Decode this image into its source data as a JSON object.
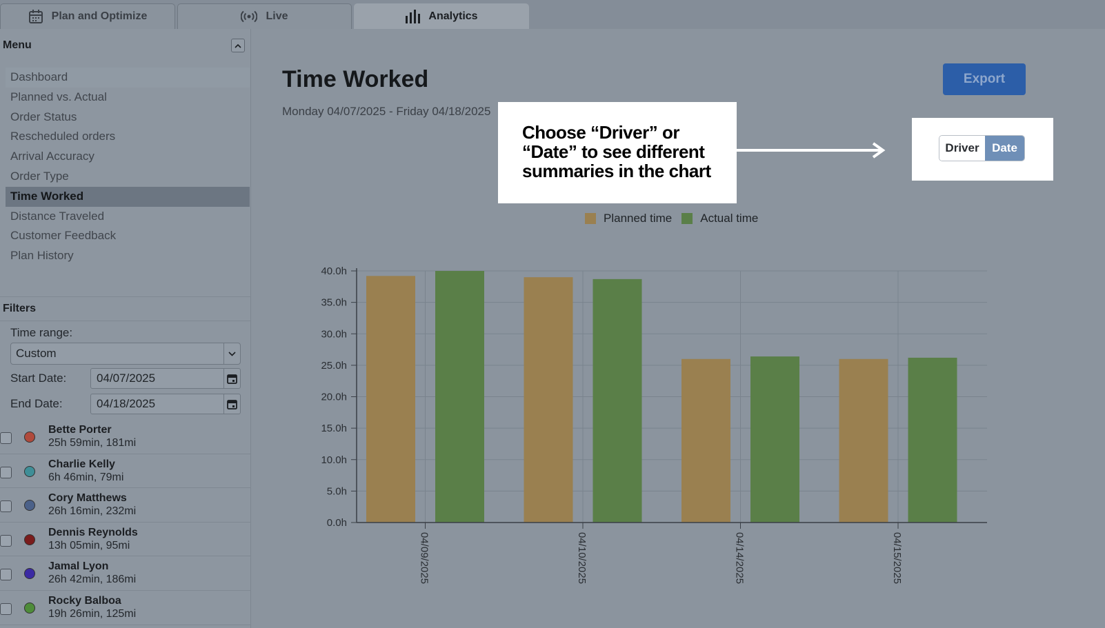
{
  "tabs": [
    {
      "label": "Plan and Optimize",
      "icon": "calendar-icon"
    },
    {
      "label": "Live",
      "icon": "broadcast-icon"
    },
    {
      "label": "Analytics",
      "icon": "bar-chart-icon",
      "active": true
    }
  ],
  "sidebar": {
    "menu_title": "Menu",
    "items": [
      {
        "label": "Dashboard"
      },
      {
        "label": "Planned vs. Actual"
      },
      {
        "label": "Order Status"
      },
      {
        "label": "Rescheduled orders"
      },
      {
        "label": "Arrival Accuracy"
      },
      {
        "label": "Order Type"
      },
      {
        "label": "Time Worked",
        "active": true
      },
      {
        "label": "Distance Traveled"
      },
      {
        "label": "Customer Feedback"
      },
      {
        "label": "Plan History"
      }
    ],
    "filters_title": "Filters",
    "time_range_label": "Time range:",
    "time_range_value": "Custom",
    "start_date_label": "Start Date:",
    "start_date_value": "04/07/2025",
    "end_date_label": "End Date:",
    "end_date_value": "04/18/2025",
    "drivers": [
      {
        "name": "Bette Porter",
        "stats": "25h 59min, 181mi",
        "color": "#b04a3c"
      },
      {
        "name": "Charlie Kelly",
        "stats": "6h 46min, 79mi",
        "color": "#3f8e97"
      },
      {
        "name": "Cory Matthews",
        "stats": "26h 16min, 232mi",
        "color": "#4b6189"
      },
      {
        "name": "Dennis Reynolds",
        "stats": "13h 05min, 95mi",
        "color": "#7a1c1c"
      },
      {
        "name": "Jamal Lyon",
        "stats": "26h 42min, 186mi",
        "color": "#3b2aa3"
      },
      {
        "name": "Rocky Balboa",
        "stats": "19h 26min, 125mi",
        "color": "#4e8c3a"
      }
    ]
  },
  "main": {
    "title": "Time Worked",
    "date_range": "Monday 04/07/2025 - Friday 04/18/2025",
    "export_label": "Export"
  },
  "callout": {
    "text": "Choose “Driver” or “Date” to see different summaries in the chart"
  },
  "toggle": {
    "driver_label": "Driver",
    "date_label": "Date",
    "selected": "Date"
  },
  "colors": {
    "planned": "#9a8050",
    "actual": "#5a7f48",
    "accent": "#2c5ea8"
  },
  "chart_data": {
    "type": "bar",
    "categories": [
      "04/09/2025",
      "04/10/2025",
      "04/14/2025",
      "04/15/2025"
    ],
    "series": [
      {
        "name": "Planned time",
        "values": [
          39.2,
          39.0,
          26.0,
          26.0
        ]
      },
      {
        "name": "Actual time",
        "values": [
          40.0,
          38.7,
          26.4,
          26.2
        ]
      }
    ],
    "ylim": [
      0,
      40
    ],
    "yticks": [
      "0.0h",
      "5.0h",
      "10.0h",
      "15.0h",
      "20.0h",
      "25.0h",
      "30.0h",
      "35.0h",
      "40.0h"
    ],
    "grid": true,
    "legend": "top-center"
  }
}
